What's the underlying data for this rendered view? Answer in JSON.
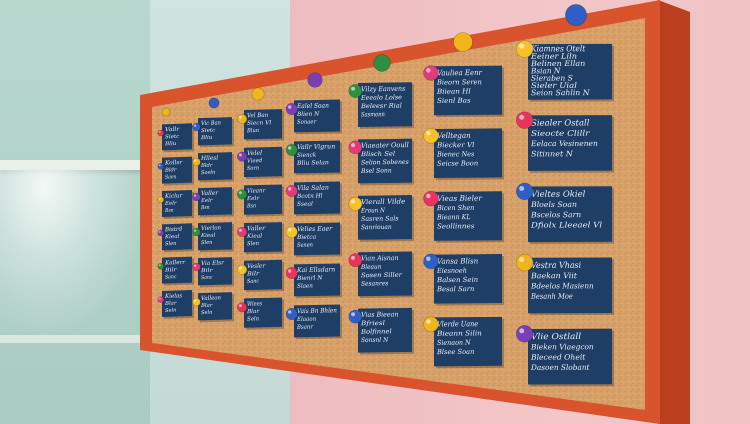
{
  "scene": {
    "description_color_frame": "#d9542d",
    "cork_color": "#d9a36a",
    "card_color": "#1f3e66",
    "card_text_color": "#e8ecf4"
  },
  "columns": [
    {
      "cards": [
        {
          "title": "Vallr",
          "lines": [
            "Sietc",
            "Bliu"
          ]
        },
        {
          "title": "Kollsr",
          "lines": [
            "Bldr",
            "Saen"
          ]
        },
        {
          "title": "Kiclur",
          "lines": [
            "Eelr",
            "Bsn"
          ]
        },
        {
          "title": "Bistrd",
          "lines": [
            "Kieal",
            "Slen"
          ]
        },
        {
          "title": "Kallerr",
          "lines": [
            "Bilr",
            "Sanc"
          ]
        },
        {
          "title": "Kielas",
          "lines": [
            "Blar",
            "Seln"
          ]
        }
      ]
    },
    {
      "cards": [
        {
          "title": "Vic Ban",
          "lines": [
            "Sietc",
            "Bliu"
          ]
        },
        {
          "title": "Hllesl",
          "lines": [
            "Bldr",
            "Saeln"
          ]
        },
        {
          "title": "Valler",
          "lines": [
            "Eelr",
            "Bsn"
          ]
        },
        {
          "title": "Vierlon",
          "lines": [
            "Kieal",
            "Slen"
          ]
        },
        {
          "title": "Via Elsr",
          "lines": [
            "Bilr",
            "Sanc"
          ]
        },
        {
          "title": "Valleon",
          "lines": [
            "Blar",
            "Seln"
          ]
        }
      ]
    },
    {
      "cards": [
        {
          "title": "Vel Ban",
          "lines": [
            "Siecn Vl",
            "Blun"
          ]
        },
        {
          "title": "Velel",
          "lines": [
            "Vieed",
            "Sorn"
          ]
        },
        {
          "title": "Vieanr",
          "lines": [
            "Eelr",
            "Bsn"
          ]
        },
        {
          "title": "Valler",
          "lines": [
            "Kieal",
            "Slen"
          ]
        },
        {
          "title": "Vesler",
          "lines": [
            "Bilr",
            "Sanc"
          ]
        },
        {
          "title": "Wiees",
          "lines": [
            "Blar",
            "Seln"
          ]
        }
      ]
    },
    {
      "cards": [
        {
          "title": "Ealel Soan",
          "lines": [
            "Blien N",
            "Sonaer"
          ]
        },
        {
          "title": "Vallr Vigrun",
          "lines": [
            "Sienck",
            "Bliu Selan"
          ]
        },
        {
          "title": "Vila Salan",
          "lines": [
            "Bcotn Hl",
            "Sseal"
          ]
        },
        {
          "title": "Velies Eaer",
          "lines": [
            "Bietca",
            "Senen"
          ]
        },
        {
          "title": "Kai Ellsdarn",
          "lines": [
            "Bienrl N",
            "Slaen"
          ]
        },
        {
          "title": "Vais Bn Bhlen",
          "lines": [
            "Elaaon",
            "Bsanr"
          ]
        }
      ]
    },
    {
      "cards": [
        {
          "title": "Vilzy Eanvens",
          "lines": [
            "Eeealo Lolse",
            "Beleesr Rial",
            "Sasmonn"
          ]
        },
        {
          "title": "Viaeater Ooull",
          "lines": [
            "Blisch Sel",
            "Selion Sobenes",
            "Bsel Sonn"
          ]
        },
        {
          "title": "Vierall Vilde",
          "lines": [
            "Eroun N",
            "Sasren Sals",
            "Sanriouan"
          ]
        },
        {
          "title": "Vian Aisnan",
          "lines": [
            "Bleaun",
            "Sosen Siller",
            "Sesanres"
          ]
        },
        {
          "title": "Vias Bieean",
          "lines": [
            "Bfriesl",
            "Bolfinnel",
            "Sonsnl N"
          ]
        }
      ]
    },
    {
      "cards": [
        {
          "title": "Vauliea Eenr",
          "lines": [
            "Bieorn Seren",
            "Biiean Hl",
            "Sienl Bas"
          ]
        },
        {
          "title": "Velltegan",
          "lines": [
            "Biecker Vl",
            "Bienec Nes",
            "Seicse Boon"
          ]
        },
        {
          "title": "Vieas Bieler",
          "lines": [
            "Bicen Shen",
            "Bieann KL",
            "Seollinnes"
          ]
        },
        {
          "title": "Vansa Blisn",
          "lines": [
            "Eiesnoeh",
            "Balsen Sein",
            "Besal Sarn"
          ]
        },
        {
          "title": "Vlerde Uane",
          "lines": [
            "Bieann Silin",
            "Sienaon N",
            "Blsee Soan"
          ]
        }
      ]
    },
    {
      "cards": [
        {
          "title": "Kiamnes Otelt",
          "lines": [
            "Eeiner Liln",
            "Belinen Ellan",
            "Bsian N",
            "Sieraben S",
            "Sieler Uial",
            "Seion Sahlin N"
          ]
        },
        {
          "title": "Siealer Ostall",
          "lines": [
            "Sieocte Clillr",
            "Eelaca Vesinenen",
            "Sitinnet N"
          ]
        },
        {
          "title": "Vieltes Okiel",
          "lines": [
            "Bloels Soan",
            "Bscelos Sarn",
            "Dfiolx Lleeael Vl"
          ]
        },
        {
          "title": "Vestra Vhasi",
          "lines": [
            "Baekan Viit",
            "Bdeelos Masienn",
            "Besanh Moe"
          ]
        },
        {
          "title": "Vlie Ostlall",
          "lines": [
            "Bieken Viaegcon",
            "Bleceed Oheit",
            "Dasoen Slobant"
          ]
        }
      ]
    }
  ]
}
